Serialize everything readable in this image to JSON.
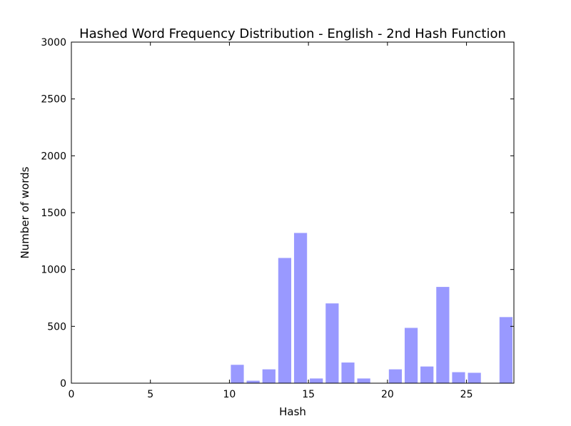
{
  "chart_data": {
    "type": "bar",
    "title": "Hashed Word Frequency Distribution - English - 2nd Hash Function",
    "xlabel": "Hash",
    "ylabel": "Number of words",
    "xlim": [
      0,
      28
    ],
    "ylim": [
      0,
      3000
    ],
    "xticks": [
      0,
      5,
      10,
      15,
      20,
      25
    ],
    "yticks": [
      0,
      500,
      1000,
      1500,
      2000,
      2500,
      3000
    ],
    "bar_width": 0.8,
    "bar_color": "#9999ff",
    "grid": false,
    "x": [
      10,
      11,
      12,
      13,
      14,
      15,
      16,
      17,
      18,
      19,
      20,
      21,
      22,
      23,
      24,
      25,
      26,
      27
    ],
    "values": [
      160,
      20,
      120,
      1100,
      1320,
      40,
      700,
      180,
      40,
      0,
      120,
      485,
      145,
      845,
      95,
      90,
      0,
      580
    ]
  }
}
